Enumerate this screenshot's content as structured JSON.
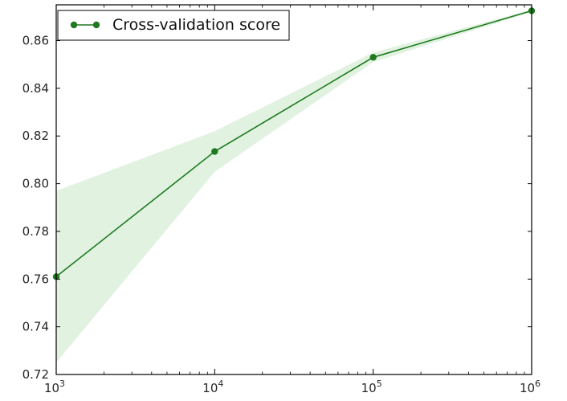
{
  "chart_data": {
    "type": "line",
    "x_scale": "log",
    "x": [
      1000,
      10000,
      100000,
      1000000
    ],
    "xlim": [
      1000,
      1000000
    ],
    "x_ticks": [
      {
        "value": 1000,
        "base": "10",
        "exp": "3"
      },
      {
        "value": 10000,
        "base": "10",
        "exp": "4"
      },
      {
        "value": 100000,
        "base": "10",
        "exp": "5"
      },
      {
        "value": 1000000,
        "base": "10",
        "exp": "6"
      }
    ],
    "ylim": [
      0.72,
      0.875
    ],
    "y_ticks": [
      {
        "value": 0.72,
        "label": "0.72"
      },
      {
        "value": 0.74,
        "label": "0.74"
      },
      {
        "value": 0.76,
        "label": "0.76"
      },
      {
        "value": 0.78,
        "label": "0.78"
      },
      {
        "value": 0.8,
        "label": "0.80"
      },
      {
        "value": 0.82,
        "label": "0.82"
      },
      {
        "value": 0.84,
        "label": "0.84"
      },
      {
        "value": 0.86,
        "label": "0.86"
      }
    ],
    "series": [
      {
        "name": "Cross-validation score",
        "color": "#1f7a1f",
        "values": [
          0.761,
          0.8135,
          0.853,
          0.8725
        ],
        "lower": [
          0.725,
          0.805,
          0.851,
          0.872
        ],
        "upper": [
          0.797,
          0.822,
          0.855,
          0.873
        ]
      }
    ],
    "band_color": "#4caf50",
    "legend_position": "top-left",
    "grid": false
  }
}
